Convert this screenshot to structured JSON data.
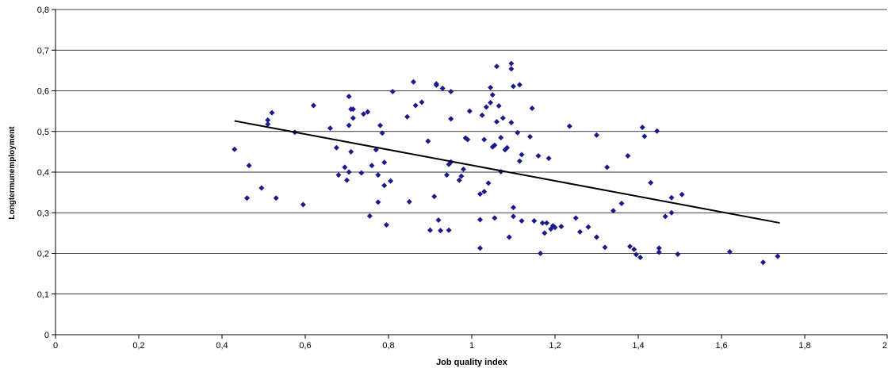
{
  "chart_data": {
    "type": "scatter",
    "title": "",
    "xlabel": "Job quality index",
    "ylabel": "Longtermunemployment",
    "xlim": [
      0,
      2
    ],
    "ylim": [
      0,
      0.8
    ],
    "x_ticks": [
      0,
      0.2,
      0.4,
      0.6,
      0.8,
      1,
      1.2,
      1.4,
      1.6,
      1.8,
      2
    ],
    "x_tick_labels": [
      "0",
      "0,2",
      "0,4",
      "0,6",
      "0,8",
      "1",
      "1,2",
      "1,4",
      "1,6",
      "1,8",
      "2"
    ],
    "y_ticks": [
      0,
      0.1,
      0.2,
      0.3,
      0.4,
      0.5,
      0.6,
      0.7,
      0.8
    ],
    "y_tick_labels": [
      "0",
      "0,1",
      "0,2",
      "0,3",
      "0,4",
      "0,5",
      "0,6",
      "0,7",
      "0,8"
    ],
    "grid": "horizontal",
    "legend": "none",
    "marker_color": "#1a1a8c",
    "trendline": {
      "x": [
        0.43,
        1.74
      ],
      "y": [
        0.526,
        0.275
      ],
      "color": "#000000"
    },
    "points": [
      [
        0.43,
        0.456
      ],
      [
        0.46,
        0.336
      ],
      [
        0.465,
        0.416
      ],
      [
        0.495,
        0.361
      ],
      [
        0.51,
        0.518
      ],
      [
        0.51,
        0.528
      ],
      [
        0.52,
        0.546
      ],
      [
        0.53,
        0.336
      ],
      [
        0.575,
        0.498
      ],
      [
        0.595,
        0.32
      ],
      [
        0.62,
        0.564
      ],
      [
        0.66,
        0.508
      ],
      [
        0.675,
        0.46
      ],
      [
        0.68,
        0.393
      ],
      [
        0.695,
        0.412
      ],
      [
        0.7,
        0.38
      ],
      [
        0.705,
        0.586
      ],
      [
        0.705,
        0.4
      ],
      [
        0.705,
        0.515
      ],
      [
        0.71,
        0.555
      ],
      [
        0.71,
        0.45
      ],
      [
        0.715,
        0.533
      ],
      [
        0.715,
        0.555
      ],
      [
        0.735,
        0.398
      ],
      [
        0.74,
        0.543
      ],
      [
        0.75,
        0.548
      ],
      [
        0.755,
        0.292
      ],
      [
        0.76,
        0.416
      ],
      [
        0.77,
        0.455
      ],
      [
        0.775,
        0.326
      ],
      [
        0.775,
        0.393
      ],
      [
        0.78,
        0.515
      ],
      [
        0.785,
        0.496
      ],
      [
        0.79,
        0.367
      ],
      [
        0.79,
        0.424
      ],
      [
        0.795,
        0.27
      ],
      [
        0.805,
        0.378
      ],
      [
        0.81,
        0.598
      ],
      [
        0.845,
        0.536
      ],
      [
        0.85,
        0.327
      ],
      [
        0.86,
        0.622
      ],
      [
        0.865,
        0.564
      ],
      [
        0.88,
        0.572
      ],
      [
        0.895,
        0.476
      ],
      [
        0.9,
        0.257
      ],
      [
        0.91,
        0.34
      ],
      [
        0.915,
        0.614
      ],
      [
        0.915,
        0.617
      ],
      [
        0.92,
        0.282
      ],
      [
        0.925,
        0.256
      ],
      [
        0.93,
        0.606
      ],
      [
        0.94,
        0.393
      ],
      [
        0.945,
        0.257
      ],
      [
        0.945,
        0.419
      ],
      [
        0.95,
        0.531
      ],
      [
        0.95,
        0.598
      ],
      [
        0.95,
        0.425
      ],
      [
        0.97,
        0.38
      ],
      [
        0.975,
        0.39
      ],
      [
        0.98,
        0.407
      ],
      [
        0.985,
        0.484
      ],
      [
        0.99,
        0.48
      ],
      [
        0.995,
        0.55
      ],
      [
        1.02,
        0.213
      ],
      [
        1.02,
        0.283
      ],
      [
        1.02,
        0.346
      ],
      [
        1.025,
        0.54
      ],
      [
        1.03,
        0.352
      ],
      [
        1.03,
        0.48
      ],
      [
        1.035,
        0.56
      ],
      [
        1.04,
        0.373
      ],
      [
        1.045,
        0.608
      ],
      [
        1.045,
        0.571
      ],
      [
        1.05,
        0.59
      ],
      [
        1.05,
        0.462
      ],
      [
        1.055,
        0.287
      ],
      [
        1.055,
        0.466
      ],
      [
        1.06,
        0.66
      ],
      [
        1.06,
        0.524
      ],
      [
        1.065,
        0.563
      ],
      [
        1.07,
        0.485
      ],
      [
        1.07,
        0.401
      ],
      [
        1.075,
        0.533
      ],
      [
        1.08,
        0.455
      ],
      [
        1.085,
        0.46
      ],
      [
        1.09,
        0.24
      ],
      [
        1.095,
        0.667
      ],
      [
        1.095,
        0.654
      ],
      [
        1.095,
        0.522
      ],
      [
        1.1,
        0.611
      ],
      [
        1.1,
        0.291
      ],
      [
        1.1,
        0.313
      ],
      [
        1.11,
        0.497
      ],
      [
        1.115,
        0.615
      ],
      [
        1.115,
        0.427
      ],
      [
        1.12,
        0.443
      ],
      [
        1.12,
        0.28
      ],
      [
        1.14,
        0.487
      ],
      [
        1.145,
        0.557
      ],
      [
        1.15,
        0.28
      ],
      [
        1.16,
        0.44
      ],
      [
        1.165,
        0.2
      ],
      [
        1.17,
        0.275
      ],
      [
        1.175,
        0.25
      ],
      [
        1.18,
        0.275
      ],
      [
        1.185,
        0.434
      ],
      [
        1.19,
        0.26
      ],
      [
        1.195,
        0.268
      ],
      [
        1.2,
        0.264
      ],
      [
        1.215,
        0.266
      ],
      [
        1.235,
        0.513
      ],
      [
        1.25,
        0.287
      ],
      [
        1.26,
        0.253
      ],
      [
        1.28,
        0.265
      ],
      [
        1.3,
        0.24
      ],
      [
        1.3,
        0.491
      ],
      [
        1.32,
        0.215
      ],
      [
        1.325,
        0.412
      ],
      [
        1.34,
        0.305
      ],
      [
        1.36,
        0.323
      ],
      [
        1.375,
        0.44
      ],
      [
        1.38,
        0.217
      ],
      [
        1.39,
        0.21
      ],
      [
        1.395,
        0.197
      ],
      [
        1.405,
        0.19
      ],
      [
        1.41,
        0.51
      ],
      [
        1.415,
        0.488
      ],
      [
        1.43,
        0.374
      ],
      [
        1.445,
        0.501
      ],
      [
        1.45,
        0.213
      ],
      [
        1.45,
        0.203
      ],
      [
        1.465,
        0.291
      ],
      [
        1.48,
        0.3
      ],
      [
        1.48,
        0.337
      ],
      [
        1.495,
        0.198
      ],
      [
        1.505,
        0.345
      ],
      [
        1.62,
        0.204
      ],
      [
        1.7,
        0.178
      ],
      [
        1.735,
        0.193
      ]
    ]
  }
}
